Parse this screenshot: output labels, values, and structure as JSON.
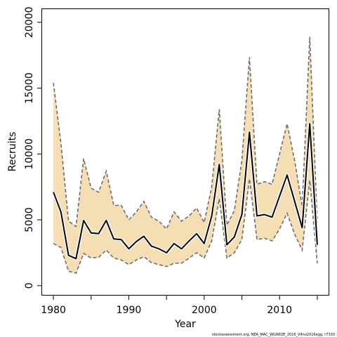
{
  "chart_data": {
    "type": "line",
    "xlabel": "Year",
    "ylabel": "Recruits",
    "xlim": [
      1978.5,
      2016.5
    ],
    "ylim": [
      -700,
      21000
    ],
    "xticks": [
      1980,
      1990,
      2000,
      2010
    ],
    "xtick_labels": [
      "1980",
      "1990",
      "2000",
      "2010"
    ],
    "xtick_minor": [
      1985,
      1995,
      2005,
      2015
    ],
    "yticks": [
      0,
      5000,
      10000,
      15000,
      20000
    ],
    "ytick_labels": [
      "0",
      "5000",
      "10000",
      "15000",
      "20000"
    ],
    "grid": false,
    "x": [
      1980,
      1981,
      1982,
      1983,
      1984,
      1985,
      1986,
      1987,
      1988,
      1989,
      1990,
      1991,
      1992,
      1993,
      1994,
      1995,
      1996,
      1997,
      1998,
      1999,
      2000,
      2001,
      2002,
      2003,
      2004,
      2005,
      2006,
      2007,
      2008,
      2009,
      2010,
      2011,
      2012,
      2013,
      2014,
      2015
    ],
    "series": [
      {
        "role": "estimate",
        "color": "#000000",
        "values": [
          7100,
          5600,
          2300,
          2050,
          4950,
          4000,
          3950,
          4950,
          3550,
          3500,
          2800,
          3350,
          3750,
          3000,
          2800,
          2500,
          3200,
          2800,
          3400,
          3950,
          3200,
          5300,
          9200,
          3100,
          3700,
          5400,
          11650,
          5300,
          5400,
          5200,
          6800,
          8400,
          6400,
          4400,
          12300,
          3100
        ]
      },
      {
        "role": "upper",
        "color": "#6e6e6e",
        "values": [
          15400,
          10800,
          4900,
          4500,
          9650,
          7400,
          7100,
          8700,
          6100,
          6100,
          5000,
          5600,
          6400,
          5200,
          4900,
          4300,
          5600,
          4900,
          5300,
          5900,
          4800,
          7500,
          13400,
          4600,
          5700,
          9500,
          17350,
          7700,
          7900,
          7700,
          10000,
          12300,
          9500,
          6000,
          18900,
          4800
        ]
      },
      {
        "role": "lower",
        "color": "#6e6e6e",
        "values": [
          3200,
          2900,
          1100,
          950,
          2450,
          2100,
          2150,
          2700,
          2100,
          1950,
          1600,
          1950,
          2200,
          1750,
          1600,
          1450,
          1700,
          1700,
          2100,
          2500,
          2100,
          3400,
          6600,
          2100,
          2500,
          3500,
          8100,
          3500,
          3600,
          3400,
          4300,
          5500,
          3900,
          2700,
          8000,
          1700
        ]
      }
    ],
    "band_fill": "#f5deb3",
    "credit": "stockassessment.org, NEA_MAC_WGWIDE_2016_V4no2016egg, r7330"
  }
}
